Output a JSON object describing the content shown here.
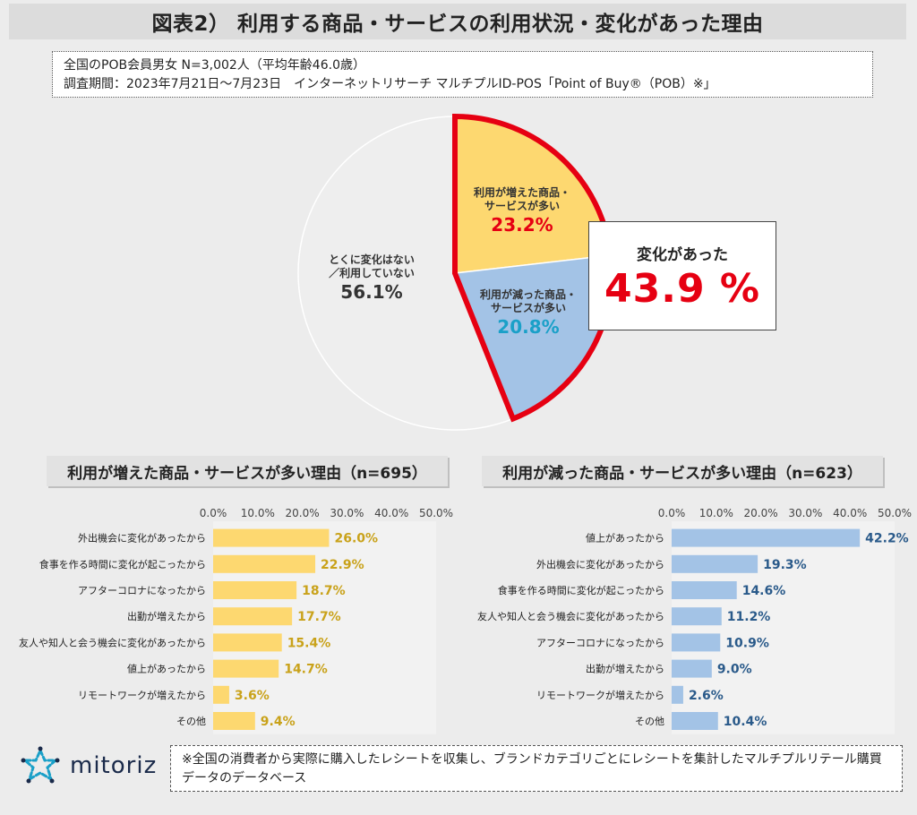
{
  "title": "図表2） 利用する商品・サービスの利用状況・変化があった理由",
  "info": {
    "line1": "全国のPOB会員男女 N=3,002人（平均年齢46.0歳）",
    "line2": "調査期間：2023年7月21日～7月23日　インターネットリサーチ マルチプルID-POS「Point of Buy®（POB）※」"
  },
  "change_box": {
    "caption": "変化があった",
    "value": "43.9 %"
  },
  "pie": {
    "slices": [
      {
        "label_lines": [
          "利用が増えた商品・",
          "サービスが多い"
        ],
        "value_text": "23.2%",
        "value": 23.2,
        "color": "#fdd870",
        "text_color": "#e60012"
      },
      {
        "label_lines": [
          "利用が減った商品・",
          "サービスが多い"
        ],
        "value_text": "20.8%",
        "value": 20.8,
        "color": "#a3c3e6",
        "text_color": "#1aa0c8"
      },
      {
        "label_lines": [
          "とくに変化はない",
          "／利用していない"
        ],
        "value_text": "56.1%",
        "value": 56.1,
        "color": "#eeeeee",
        "text_color": "#333333"
      }
    ],
    "highlight_color": "#e60012"
  },
  "chart_data": [
    {
      "type": "bar",
      "orientation": "horizontal",
      "title": "利用が増えた商品・サービスが多い理由（n=695）",
      "categories": [
        "外出機会に変化があったから",
        "食事を作る時間に変化が起こったから",
        "アフターコロナになったから",
        "出勤が増えたから",
        "友人や知人と会う機会に変化があったから",
        "値上があったから",
        "リモートワークが増えたから",
        "その他"
      ],
      "values": [
        26.0,
        22.9,
        18.7,
        17.7,
        15.4,
        14.7,
        3.6,
        9.4
      ],
      "value_labels": [
        "26.0%",
        "22.9%",
        "18.7%",
        "17.7%",
        "15.4%",
        "14.7%",
        "3.6%",
        "9.4%"
      ],
      "xlim": [
        0,
        50
      ],
      "ticks": [
        "0.0%",
        "10.0%",
        "20.0%",
        "30.0%",
        "40.0%",
        "50.0%"
      ],
      "bar_color": "#fdd870",
      "label_color": "#c9a21a"
    },
    {
      "type": "bar",
      "orientation": "horizontal",
      "title": "利用が減った商品・サービスが多い理由（n=623）",
      "categories": [
        "値上があったから",
        "外出機会に変化があったから",
        "食事を作る時間に変化が起こったから",
        "友人や知人と会う機会に変化があったから",
        "アフターコロナになったから",
        "出勤が増えたから",
        "リモートワークが増えたから",
        "その他"
      ],
      "values": [
        42.2,
        19.3,
        14.6,
        11.2,
        10.9,
        9.0,
        2.6,
        10.4
      ],
      "value_labels": [
        "42.2%",
        "19.3%",
        "14.6%",
        "11.2%",
        "10.9%",
        "9.0%",
        "2.6%",
        "10.4%"
      ],
      "xlim": [
        0,
        50
      ],
      "ticks": [
        "0.0%",
        "10.0%",
        "20.0%",
        "30.0%",
        "40.0%",
        "50.0%"
      ],
      "bar_color": "#a3c3e6",
      "label_color": "#2a5a8a"
    }
  ],
  "logo": {
    "icon": "mitoriz-star-logo",
    "word": "mitoriz"
  },
  "note": "※全国の消費者から実際に購入したレシートを収集し、ブランドカテゴリごとにレシートを集計したマルチプルリテール購買データのデータベース"
}
